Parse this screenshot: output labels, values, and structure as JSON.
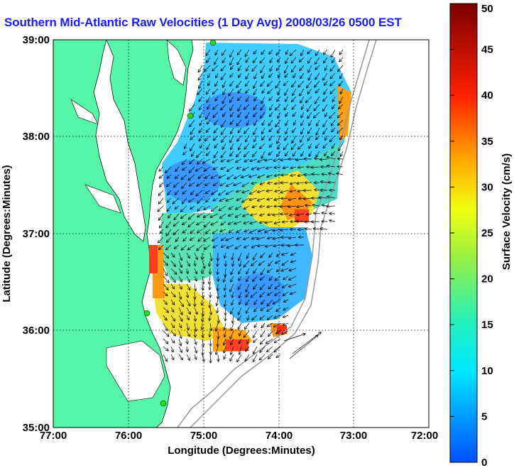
{
  "title": "Southern Mid-Atlantic Raw Velocities (1 Day Avg) 2008/03/26 0500 EST",
  "x_axis": {
    "label": "Longitude (Degrees:Minutes)",
    "ticks": [
      "77:00",
      "76:00",
      "75:00",
      "74:00",
      "73:00",
      "72:00"
    ]
  },
  "y_axis": {
    "label": "Latitude (Degrees:Minutes)",
    "ticks": [
      "39:00",
      "38:00",
      "37:00",
      "36:00",
      "35:00"
    ]
  },
  "colorbar": {
    "label": "Surface Velocity (cm/s)",
    "ticks": [
      "50",
      "45",
      "40",
      "35",
      "30",
      "25",
      "20",
      "15",
      "10",
      "5",
      "0"
    ],
    "min": 0,
    "max": 50
  },
  "colors": {
    "land": "#57f5a8",
    "title": "#1a1aff",
    "stations": "#22dd22"
  }
}
